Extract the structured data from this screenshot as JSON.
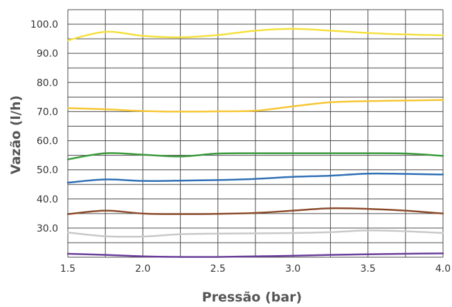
{
  "chart_data": {
    "type": "line",
    "title": "",
    "xlabel": "Pressão (bar)",
    "ylabel": "Vazão (l/h)",
    "xlim": [
      1.5,
      4.0
    ],
    "ylim": [
      20.0,
      105.0
    ],
    "x_ticks": [
      "1.5",
      "2.0",
      "2.5",
      "3.0",
      "3.5",
      "4.0"
    ],
    "y_ticks": [
      "30.0",
      "40.0",
      "50.0",
      "60.0",
      "70.0",
      "80.0",
      "90.0",
      "100.0"
    ],
    "grid": true,
    "legend": "none",
    "x": [
      1.5,
      1.75,
      2.0,
      2.25,
      2.5,
      2.75,
      3.0,
      3.25,
      3.5,
      3.75,
      4.0
    ],
    "series": [
      {
        "color": "#f5e03c",
        "values": [
          94.5,
          97.4,
          96.0,
          95.5,
          96.3,
          97.8,
          98.4,
          97.8,
          97.0,
          96.5,
          96.2
        ]
      },
      {
        "color": "#f7c633",
        "values": [
          71.2,
          70.8,
          70.2,
          70.0,
          70.1,
          70.3,
          71.8,
          73.2,
          73.6,
          73.8,
          74.0
        ]
      },
      {
        "color": "#3b9a3b",
        "values": [
          53.6,
          55.7,
          55.2,
          54.6,
          55.6,
          55.7,
          55.7,
          55.7,
          55.7,
          55.6,
          54.8
        ]
      },
      {
        "color": "#2f6fb5",
        "values": [
          45.6,
          46.7,
          46.2,
          46.3,
          46.5,
          46.9,
          47.6,
          48.0,
          48.7,
          48.6,
          48.4
        ]
      },
      {
        "color": "#8b4a2b",
        "values": [
          34.8,
          36.0,
          35.0,
          34.8,
          34.9,
          35.2,
          36.0,
          36.8,
          36.6,
          36.0,
          35.0
        ]
      },
      {
        "color": "#c8c8c8",
        "values": [
          28.5,
          27.2,
          27.1,
          27.9,
          28.1,
          28.2,
          28.3,
          28.6,
          29.2,
          28.9,
          28.3
        ]
      },
      {
        "color": "#6a3d9a",
        "values": [
          21.2,
          20.8,
          20.3,
          20.1,
          20.1,
          20.3,
          20.5,
          20.8,
          21.0,
          21.2,
          21.3
        ]
      }
    ]
  }
}
